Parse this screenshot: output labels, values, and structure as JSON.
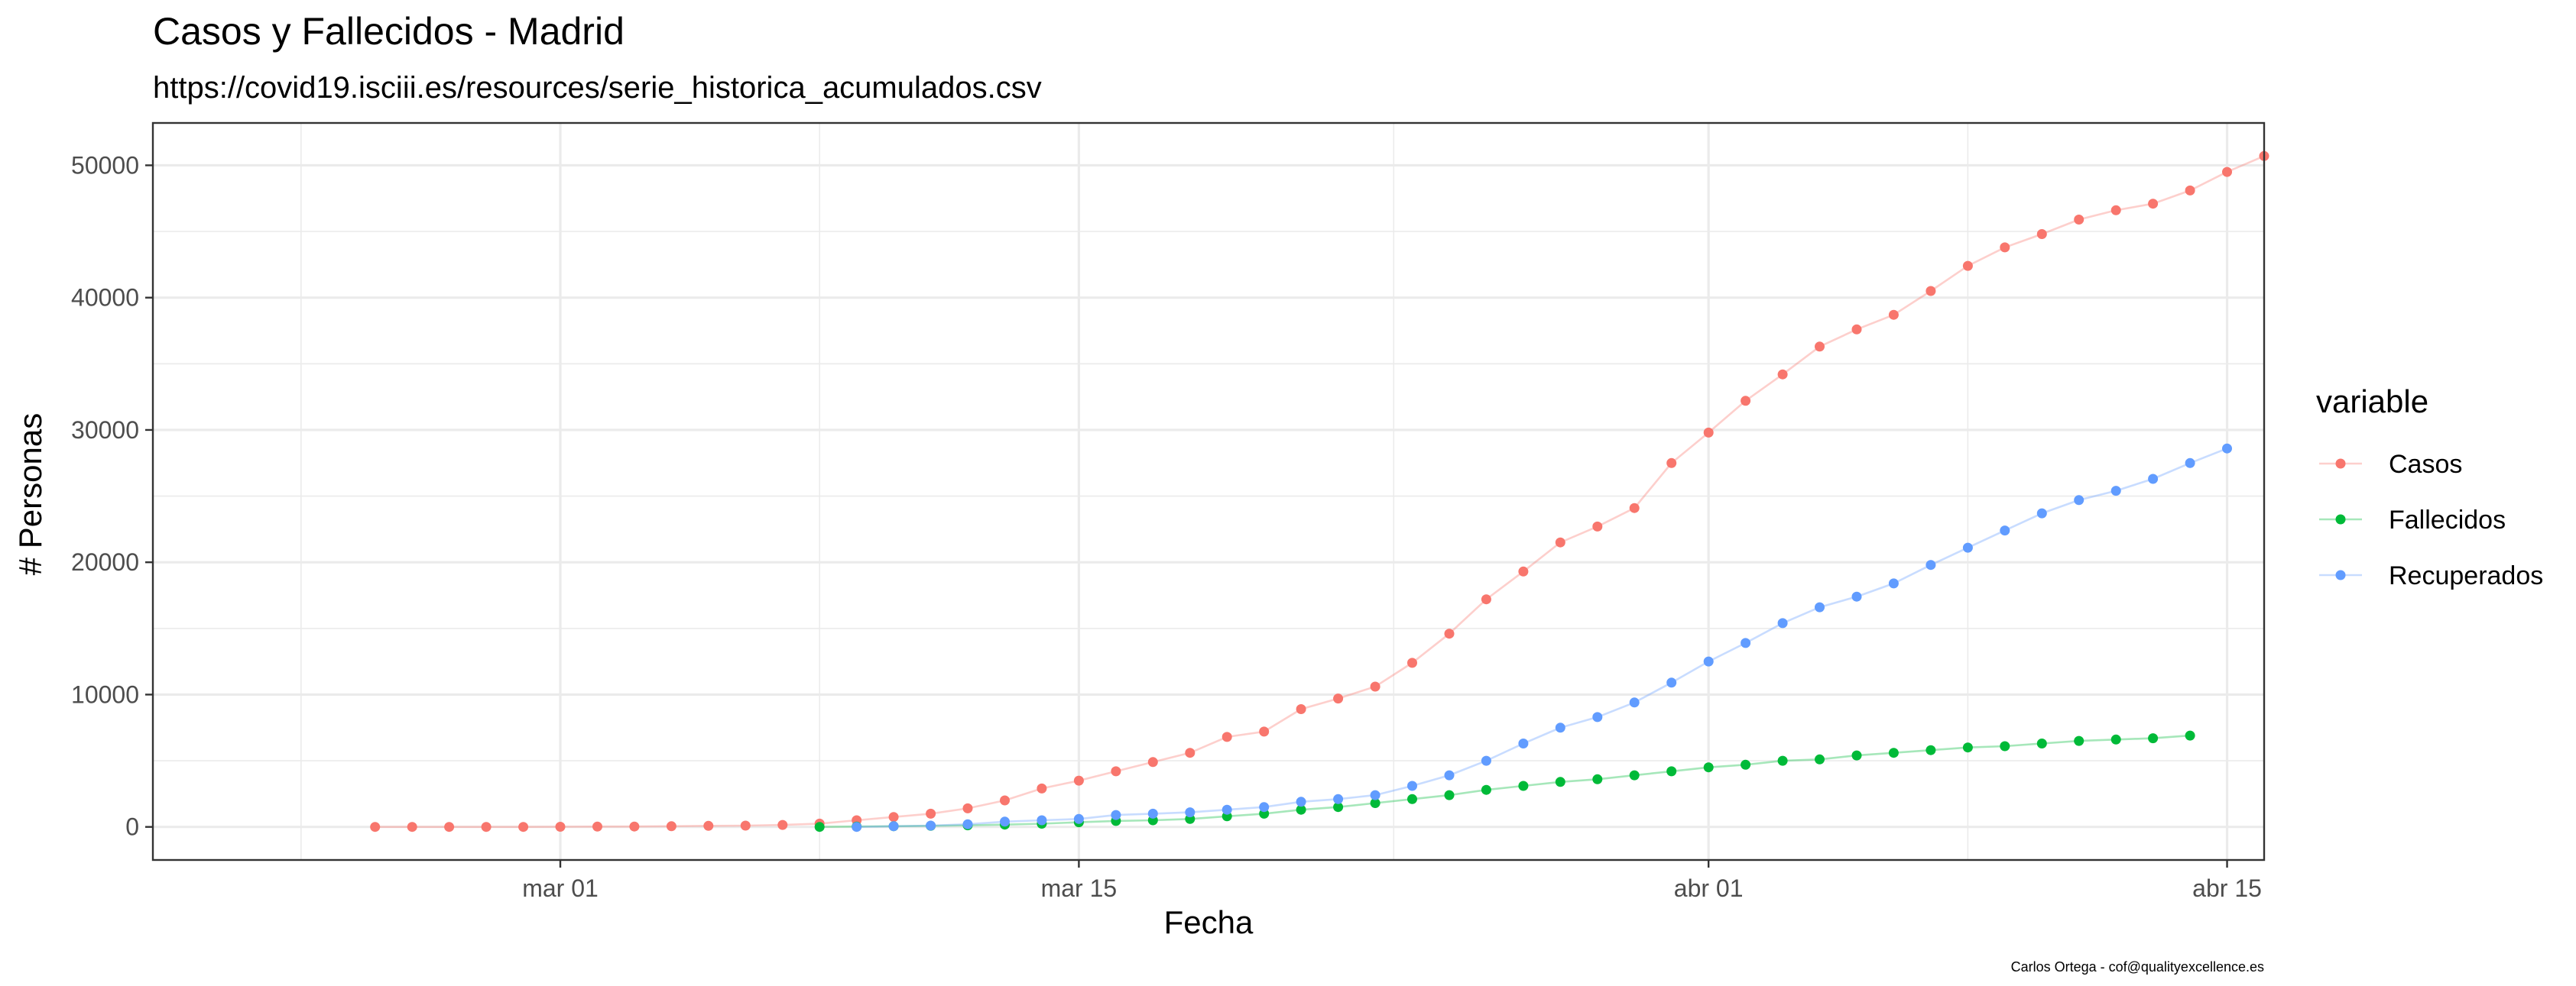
{
  "chart_data": {
    "type": "line",
    "title": "Casos y Fallecidos - Madrid",
    "subtitle": "https://covid19.isciii.es/resources/serie_historica_acumulados.csv",
    "xlabel": "Fecha",
    "ylabel": "# Personas",
    "caption": "Carlos Ortega - cof@qualityexcellence.es",
    "legend_title": "variable",
    "legend_position": "right",
    "grid": true,
    "x_start_date": "2020-02-25",
    "xlim": [
      "2020-02-19",
      "2020-04-16"
    ],
    "ylim": [
      -2500,
      53200
    ],
    "x_ticks": [
      {
        "date": "2020-03-01",
        "label": "mar 01"
      },
      {
        "date": "2020-03-15",
        "label": "mar 15"
      },
      {
        "date": "2020-04-01",
        "label": "abr 01"
      },
      {
        "date": "2020-04-15",
        "label": "abr 15"
      }
    ],
    "y_ticks": [
      {
        "value": 0,
        "label": "0"
      },
      {
        "value": 10000,
        "label": "10000"
      },
      {
        "value": 20000,
        "label": "20000"
      },
      {
        "value": 30000,
        "label": "30000"
      },
      {
        "value": 40000,
        "label": "40000"
      },
      {
        "value": 50000,
        "label": "50000"
      }
    ],
    "series": [
      {
        "name": "Casos",
        "color": "#F8766D",
        "start_date": "2020-02-25",
        "values": [
          0,
          0,
          0,
          0,
          0,
          10,
          20,
          30,
          50,
          80,
          100,
          150,
          250,
          500,
          750,
          1000,
          1400,
          2000,
          2900,
          3500,
          4200,
          4900,
          5600,
          6800,
          7200,
          8900,
          9700,
          10600,
          12400,
          14600,
          17200,
          19300,
          21500,
          22700,
          24100,
          27500,
          29800,
          32200,
          34200,
          36300,
          37600,
          38700,
          40500,
          42400,
          43800,
          44800,
          45900,
          46600,
          47100,
          48100,
          49500,
          50700
        ]
      },
      {
        "name": "Fallecidos",
        "color": "#00BA38",
        "start_date": "2020-03-08",
        "values": [
          0,
          30,
          50,
          80,
          120,
          170,
          240,
          350,
          450,
          500,
          600,
          800,
          1000,
          1300,
          1500,
          1800,
          2100,
          2400,
          2800,
          3100,
          3400,
          3600,
          3900,
          4200,
          4500,
          4700,
          5000,
          5100,
          5400,
          5600,
          5800,
          6000,
          6100,
          6300,
          6500,
          6600,
          6700,
          6900
        ]
      },
      {
        "name": "Recuperados",
        "color": "#619CFF",
        "start_date": "2020-03-09",
        "values": [
          0,
          50,
          100,
          200,
          400,
          500,
          600,
          900,
          1000,
          1100,
          1300,
          1500,
          1900,
          2100,
          2400,
          3100,
          3900,
          5000,
          6300,
          7500,
          8300,
          9400,
          10900,
          12500,
          13900,
          15400,
          16600,
          17400,
          18400,
          19800,
          21100,
          22400,
          23700,
          24700,
          25400,
          26300,
          27500,
          28600
        ]
      }
    ]
  }
}
